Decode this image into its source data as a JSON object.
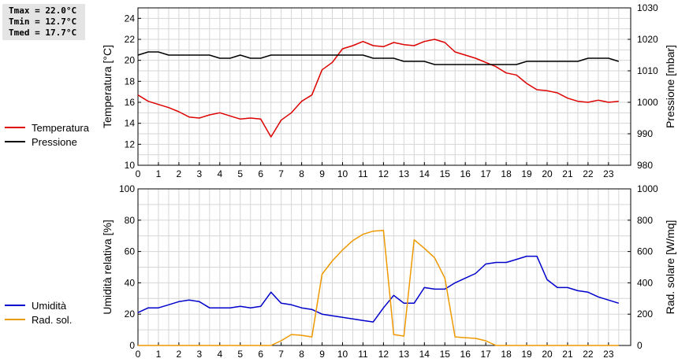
{
  "stats": {
    "tmax": "Tmax = 22.0°C",
    "tmin": "Tmin = 12.7°C",
    "tmed": "Tmed = 17.7°C"
  },
  "chart_data": [
    {
      "type": "line",
      "x_ticks": [
        "0",
        "1",
        "2",
        "3",
        "4",
        "5",
        "6",
        "7",
        "8",
        "9",
        "10",
        "11",
        "12",
        "13",
        "14",
        "15",
        "16",
        "17",
        "18",
        "19",
        "20",
        "21",
        "22",
        "23"
      ],
      "ylabel_left": "Temperatura [°C]",
      "ylabel_right": "Pressione [mbar]",
      "ylim_left": [
        10,
        25
      ],
      "yticks_left": [
        "10",
        "12",
        "14",
        "16",
        "18",
        "20",
        "22",
        "24"
      ],
      "ylim_right": [
        980,
        1030
      ],
      "yticks_right": [
        "980",
        "990",
        "1000",
        "1010",
        "1020",
        "1030"
      ],
      "grid": true,
      "series": [
        {
          "name": "Temperatura",
          "color": "#dd0000",
          "axis": "left",
          "x": [
            0,
            0.5,
            1,
            1.5,
            2,
            2.5,
            3,
            3.5,
            4,
            4.5,
            5,
            5.5,
            6,
            6.5,
            7,
            7.5,
            8,
            8.5,
            9,
            9.5,
            10,
            10.5,
            11,
            11.5,
            12,
            12.5,
            13,
            13.5,
            14,
            14.5,
            15,
            15.5,
            16,
            16.5,
            17,
            17.5,
            18,
            18.5,
            19,
            19.5,
            20,
            20.5,
            21,
            21.5,
            22,
            22.5,
            23,
            23.5
          ],
          "y": [
            16.7,
            16.1,
            15.8,
            15.5,
            15.1,
            14.6,
            14.5,
            14.8,
            15.0,
            14.7,
            14.4,
            14.5,
            14.4,
            12.7,
            14.3,
            15.0,
            16.1,
            16.7,
            19.1,
            19.8,
            21.1,
            21.4,
            21.8,
            21.4,
            21.3,
            21.7,
            21.5,
            21.4,
            21.8,
            22.0,
            21.7,
            20.8,
            20.5,
            20.2,
            19.8,
            19.4,
            18.8,
            18.6,
            17.8,
            17.2,
            17.1,
            16.9,
            16.4,
            16.1,
            16.0,
            16.2,
            16.0,
            16.1
          ]
        },
        {
          "name": "Pressione",
          "color": "#000000",
          "axis": "right",
          "x": [
            0,
            0.5,
            1,
            1.5,
            2,
            2.5,
            3,
            3.5,
            4,
            4.5,
            5,
            5.5,
            6,
            6.5,
            7,
            7.5,
            8,
            8.5,
            9,
            9.5,
            10,
            10.5,
            11,
            11.5,
            12,
            12.5,
            13,
            13.5,
            14,
            14.5,
            15,
            15.5,
            16,
            16.5,
            17,
            17.5,
            18,
            18.5,
            19,
            19.5,
            20,
            20.5,
            21,
            21.5,
            22,
            22.5,
            23,
            23.5
          ],
          "y": [
            1015,
            1016,
            1016,
            1015,
            1015,
            1015,
            1015,
            1015,
            1014,
            1014,
            1015,
            1014,
            1014,
            1015,
            1015,
            1015,
            1015,
            1015,
            1015,
            1015,
            1015,
            1015,
            1015,
            1014,
            1014,
            1014,
            1013,
            1013,
            1013,
            1012,
            1012,
            1012,
            1012,
            1012,
            1012,
            1012,
            1012,
            1012,
            1013,
            1013,
            1013,
            1013,
            1013,
            1013,
            1014,
            1014,
            1014,
            1013
          ]
        }
      ]
    },
    {
      "type": "line",
      "x_ticks": [
        "0",
        "1",
        "2",
        "3",
        "4",
        "5",
        "6",
        "7",
        "8",
        "9",
        "10",
        "11",
        "12",
        "13",
        "14",
        "15",
        "16",
        "17",
        "18",
        "19",
        "20",
        "21",
        "22",
        "23"
      ],
      "ylabel_left": "Umidità relativa [%]",
      "ylabel_right": "Rad. solare [W/mq]",
      "ylim_left": [
        0,
        100
      ],
      "yticks_left": [
        "0",
        "20",
        "40",
        "60",
        "80",
        "100"
      ],
      "ylim_right": [
        0,
        1000
      ],
      "yticks_right": [
        "0",
        "200",
        "400",
        "600",
        "800",
        "1000"
      ],
      "grid": true,
      "series": [
        {
          "name": "Umidità",
          "color": "#0000cc",
          "axis": "left",
          "x": [
            0,
            0.5,
            1,
            1.5,
            2,
            2.5,
            3,
            3.5,
            4,
            4.5,
            5,
            5.5,
            6,
            6.5,
            7,
            7.5,
            8,
            8.5,
            9,
            9.5,
            10,
            10.5,
            11,
            11.5,
            12,
            12.5,
            13,
            13.5,
            14,
            14.5,
            15,
            15.5,
            16,
            16.5,
            17,
            17.5,
            18,
            18.5,
            19,
            19.5,
            20,
            20.5,
            21,
            21.5,
            22,
            22.5,
            23,
            23.5
          ],
          "y": [
            21,
            24,
            24,
            26,
            28,
            29,
            28,
            24,
            24,
            24,
            25,
            24,
            25,
            34,
            27,
            26,
            24,
            23,
            20,
            19,
            18,
            17,
            16,
            15,
            24,
            32,
            27,
            27,
            37,
            36,
            36,
            40,
            43,
            46,
            52,
            53,
            53,
            55,
            57,
            57,
            42,
            37,
            37,
            35,
            34,
            31,
            29,
            27
          ]
        },
        {
          "name": "Rad. sol.",
          "color": "#ee9900",
          "axis": "right",
          "x": [
            0,
            0.5,
            1,
            1.5,
            2,
            2.5,
            3,
            3.5,
            4,
            4.5,
            5,
            5.5,
            6,
            6.5,
            7,
            7.5,
            8,
            8.5,
            9,
            9.5,
            10,
            10.5,
            11,
            11.5,
            12,
            12.5,
            13,
            13.5,
            14,
            14.5,
            15,
            15.5,
            16,
            16.5,
            17,
            17.5,
            18,
            18.5,
            19,
            19.5,
            20,
            20.5,
            21,
            21.5,
            22,
            22.5,
            23,
            23.5
          ],
          "y": [
            0,
            0,
            0,
            0,
            0,
            0,
            0,
            0,
            0,
            0,
            0,
            0,
            0,
            0,
            30,
            70,
            65,
            55,
            455,
            540,
            610,
            670,
            710,
            730,
            735,
            70,
            60,
            675,
            620,
            560,
            430,
            55,
            50,
            45,
            30,
            0,
            0,
            0,
            0,
            0,
            0,
            0,
            0,
            0,
            0,
            0,
            0,
            0
          ]
        }
      ]
    }
  ]
}
